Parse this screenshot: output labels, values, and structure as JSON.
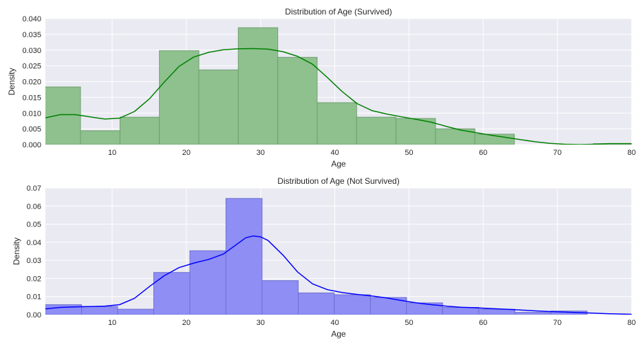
{
  "chart_data": [
    {
      "type": "bar",
      "title": "Distribution of Age (Survived)",
      "xlabel": "Age",
      "ylabel": "Density",
      "xlim": [
        1,
        80
      ],
      "ylim": [
        0,
        0.04
      ],
      "xticks": [
        10,
        20,
        30,
        40,
        50,
        60,
        70,
        80
      ],
      "yticks": [
        0.0,
        0.005,
        0.01,
        0.015,
        0.02,
        0.025,
        0.03,
        0.035,
        0.04
      ],
      "ytick_labels": [
        "0.000",
        "0.005",
        "0.010",
        "0.015",
        "0.020",
        "0.025",
        "0.030",
        "0.035",
        "0.040"
      ],
      "grid": true,
      "bar_color": "#8ec18e",
      "bar_edge": "#6f9e6f",
      "line_color": "#008000",
      "bins": [
        {
          "x0": 0.42,
          "x1": 5.73,
          "value": 0.0183
        },
        {
          "x0": 5.73,
          "x1": 11.05,
          "value": 0.0044
        },
        {
          "x0": 11.05,
          "x1": 16.36,
          "value": 0.0087
        },
        {
          "x0": 16.36,
          "x1": 21.68,
          "value": 0.0298
        },
        {
          "x0": 21.68,
          "x1": 26.99,
          "value": 0.0237
        },
        {
          "x0": 26.99,
          "x1": 32.31,
          "value": 0.0371
        },
        {
          "x0": 32.31,
          "x1": 37.62,
          "value": 0.0277
        },
        {
          "x0": 37.62,
          "x1": 42.94,
          "value": 0.0133
        },
        {
          "x0": 42.94,
          "x1": 48.25,
          "value": 0.0087
        },
        {
          "x0": 48.25,
          "x1": 53.57,
          "value": 0.0083
        },
        {
          "x0": 53.57,
          "x1": 58.88,
          "value": 0.005
        },
        {
          "x0": 58.88,
          "x1": 64.2,
          "value": 0.0033
        },
        {
          "x0": 64.2,
          "x1": 69.51,
          "value": 0.0
        },
        {
          "x0": 69.51,
          "x1": 74.83,
          "value": 0.0
        },
        {
          "x0": 74.83,
          "x1": 80.14,
          "value": 0.0003
        }
      ],
      "kde": {
        "x": [
          1,
          3,
          5,
          7,
          9,
          11,
          13,
          15,
          17,
          19,
          21,
          23,
          25,
          27,
          29,
          31,
          33,
          35,
          37,
          39,
          41,
          43,
          45,
          47,
          49,
          51,
          53,
          55,
          57,
          59,
          61,
          63,
          65,
          67,
          69,
          71,
          73,
          75,
          77,
          80
        ],
        "y": [
          0.0085,
          0.0095,
          0.0095,
          0.0088,
          0.0081,
          0.0084,
          0.0105,
          0.0145,
          0.0198,
          0.0248,
          0.0278,
          0.0293,
          0.0301,
          0.0304,
          0.0305,
          0.0303,
          0.0295,
          0.028,
          0.0255,
          0.0213,
          0.0168,
          0.013,
          0.0108,
          0.0097,
          0.0088,
          0.008,
          0.0071,
          0.0058,
          0.0046,
          0.0038,
          0.003,
          0.0023,
          0.0016,
          0.0009,
          0.0004,
          0.0001,
          0.0,
          0.0001,
          0.0003,
          0.0003
        ]
      }
    },
    {
      "type": "bar",
      "title": "Distribution of Age (Not Survived)",
      "xlabel": "Age",
      "ylabel": "Density",
      "xlim": [
        1,
        80
      ],
      "ylim": [
        0,
        0.07
      ],
      "xticks": [
        10,
        20,
        30,
        40,
        50,
        60,
        70,
        80
      ],
      "yticks": [
        0.0,
        0.01,
        0.02,
        0.03,
        0.04,
        0.05,
        0.06,
        0.07
      ],
      "ytick_labels": [
        "0.00",
        "0.01",
        "0.02",
        "0.03",
        "0.04",
        "0.05",
        "0.06",
        "0.07"
      ],
      "grid": true,
      "bar_color": "#8e8ef5",
      "bar_edge": "#6f6fd0",
      "line_color": "#0000ff",
      "bins": [
        {
          "x0": 1,
          "x1": 5.87,
          "value": 0.0055
        },
        {
          "x0": 5.87,
          "x1": 10.73,
          "value": 0.0045
        },
        {
          "x0": 10.73,
          "x1": 15.6,
          "value": 0.003
        },
        {
          "x0": 15.6,
          "x1": 20.47,
          "value": 0.0233
        },
        {
          "x0": 20.47,
          "x1": 25.33,
          "value": 0.0353
        },
        {
          "x0": 25.33,
          "x1": 30.2,
          "value": 0.0642
        },
        {
          "x0": 30.2,
          "x1": 35.07,
          "value": 0.0188
        },
        {
          "x0": 35.07,
          "x1": 39.93,
          "value": 0.012
        },
        {
          "x0": 39.93,
          "x1": 44.8,
          "value": 0.011
        },
        {
          "x0": 44.8,
          "x1": 49.67,
          "value": 0.0095
        },
        {
          "x0": 49.67,
          "x1": 54.53,
          "value": 0.0065
        },
        {
          "x0": 54.53,
          "x1": 59.4,
          "value": 0.004
        },
        {
          "x0": 59.4,
          "x1": 64.27,
          "value": 0.003
        },
        {
          "x0": 64.27,
          "x1": 69.13,
          "value": 0.0013
        },
        {
          "x0": 69.13,
          "x1": 74.0,
          "value": 0.002
        }
      ],
      "kde": {
        "x": [
          1,
          3,
          5,
          7,
          9,
          11,
          13,
          15,
          17,
          19,
          21,
          23,
          25,
          27,
          28,
          29,
          30,
          31,
          33,
          35,
          37,
          39,
          41,
          43,
          45,
          47,
          49,
          51,
          53,
          55,
          57,
          59,
          61,
          63,
          65,
          67,
          69,
          71,
          73,
          75,
          77,
          80
        ],
        "y": [
          0.0032,
          0.004,
          0.0043,
          0.0045,
          0.0047,
          0.0055,
          0.009,
          0.0155,
          0.0215,
          0.026,
          0.0285,
          0.0305,
          0.0335,
          0.0395,
          0.0425,
          0.0435,
          0.043,
          0.041,
          0.033,
          0.0235,
          0.017,
          0.0138,
          0.0122,
          0.0112,
          0.0103,
          0.0092,
          0.0078,
          0.0065,
          0.0055,
          0.0047,
          0.0041,
          0.0038,
          0.0034,
          0.003,
          0.0026,
          0.0021,
          0.0017,
          0.0014,
          0.0011,
          0.0008,
          0.0005,
          0.0002
        ]
      }
    }
  ]
}
